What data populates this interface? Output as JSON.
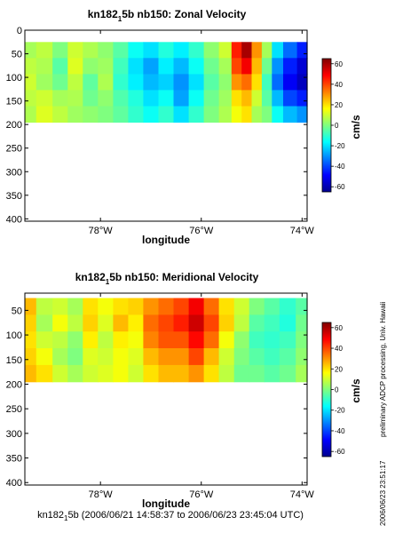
{
  "chart_data": [
    {
      "type": "heatmap",
      "title_main": "kn182",
      "title_sub": "1",
      "title_rest": "5b nb150: Zonal Velocity",
      "xlabel": "longitude",
      "ylabel": "",
      "x_ticks": [
        {
          "v": -78,
          "label": "78°W"
        },
        {
          "v": -76,
          "label": "76°W"
        },
        {
          "v": -74,
          "label": "74°W"
        }
      ],
      "y_ticks": [
        {
          "v": 0,
          "label": "0"
        },
        {
          "v": 50,
          "label": "50"
        },
        {
          "v": 100,
          "label": "100"
        },
        {
          "v": 150,
          "label": "150"
        },
        {
          "v": 200,
          "label": "200"
        },
        {
          "v": 250,
          "label": "250"
        },
        {
          "v": 300,
          "label": "300"
        },
        {
          "v": 350,
          "label": "350"
        },
        {
          "v": 400,
          "label": "400"
        }
      ],
      "xlim": [
        -79.5,
        -73.9
      ],
      "ylim": [
        405,
        0
      ],
      "colorbar": {
        "label": "cm/s",
        "min": -65,
        "max": 65,
        "ticks": [
          60,
          40,
          20,
          0,
          -20,
          -40,
          -60
        ]
      },
      "data_depth_range": [
        25,
        195
      ],
      "profiles": [
        {
          "lon": -79.45,
          "values": [
            5,
            8,
            10,
            8,
            6
          ]
        },
        {
          "lon": -79.1,
          "values": [
            8,
            6,
            4,
            10,
            12
          ]
        },
        {
          "lon": -78.8,
          "values": [
            0,
            -5,
            -2,
            5,
            8
          ]
        },
        {
          "lon": -78.5,
          "values": [
            10,
            12,
            8,
            6,
            4
          ]
        },
        {
          "lon": -78.2,
          "values": [
            6,
            2,
            -4,
            -2,
            2
          ]
        },
        {
          "lon": -77.9,
          "values": [
            2,
            4,
            6,
            2,
            0
          ]
        },
        {
          "lon": -77.6,
          "values": [
            -5,
            -8,
            -10,
            -6,
            -4
          ]
        },
        {
          "lon": -77.3,
          "values": [
            -15,
            -20,
            -18,
            -12,
            -10
          ]
        },
        {
          "lon": -77.0,
          "values": [
            -20,
            -28,
            -25,
            -20,
            -15
          ]
        },
        {
          "lon": -76.7,
          "values": [
            -12,
            -18,
            -22,
            -15,
            -10
          ]
        },
        {
          "lon": -76.4,
          "values": [
            -18,
            -25,
            -30,
            -28,
            -20
          ]
        },
        {
          "lon": -76.1,
          "values": [
            -10,
            -15,
            -20,
            -15,
            -10
          ]
        },
        {
          "lon": -75.8,
          "values": [
            2,
            -2,
            -5,
            -2,
            0
          ]
        },
        {
          "lon": -75.5,
          "values": [
            10,
            5,
            2,
            4,
            6
          ]
        },
        {
          "lon": -75.3,
          "values": [
            45,
            40,
            30,
            20,
            15
          ]
        },
        {
          "lon": -75.1,
          "values": [
            60,
            50,
            35,
            25,
            20
          ]
        },
        {
          "lon": -74.9,
          "values": [
            30,
            25,
            20,
            10,
            5
          ]
        },
        {
          "lon": -74.7,
          "values": [
            5,
            -2,
            -8,
            -5,
            0
          ]
        },
        {
          "lon": -74.5,
          "values": [
            -20,
            -30,
            -35,
            -25,
            -15
          ]
        },
        {
          "lon": -74.25,
          "values": [
            -35,
            -45,
            -50,
            -40,
            -25
          ]
        },
        {
          "lon": -73.95,
          "values": [
            -45,
            -55,
            -58,
            -45,
            -30
          ]
        }
      ]
    },
    {
      "type": "heatmap",
      "title_main": "kn182",
      "title_sub": "1",
      "title_rest": "5b nb150: Meridional Velocity",
      "xlabel": "longitude",
      "ylabel": "",
      "x_ticks": [
        {
          "v": -78,
          "label": "78°W"
        },
        {
          "v": -76,
          "label": "76°W"
        },
        {
          "v": -74,
          "label": "74°W"
        }
      ],
      "y_ticks": [
        {
          "v": 50,
          "label": "50"
        },
        {
          "v": 100,
          "label": "100"
        },
        {
          "v": 150,
          "label": "150"
        },
        {
          "v": 200,
          "label": "200"
        },
        {
          "v": 250,
          "label": "250"
        },
        {
          "v": 300,
          "label": "300"
        },
        {
          "v": 350,
          "label": "350"
        },
        {
          "v": 400,
          "label": "400"
        }
      ],
      "xlim": [
        -79.5,
        -73.9
      ],
      "ylim": [
        405,
        15
      ],
      "colorbar": {
        "label": "cm/s",
        "min": -65,
        "max": 65,
        "ticks": [
          60,
          40,
          20,
          0,
          -20,
          -40,
          -60
        ]
      },
      "data_depth_range": [
        25,
        195
      ],
      "profiles": [
        {
          "lon": -79.45,
          "values": [
            25,
            22,
            20,
            22,
            25
          ]
        },
        {
          "lon": -79.1,
          "values": [
            8,
            5,
            10,
            15,
            20
          ]
        },
        {
          "lon": -78.8,
          "values": [
            10,
            15,
            8,
            5,
            10
          ]
        },
        {
          "lon": -78.5,
          "values": [
            5,
            8,
            2,
            0,
            5
          ]
        },
        {
          "lon": -78.2,
          "values": [
            20,
            22,
            18,
            12,
            10
          ]
        },
        {
          "lon": -77.9,
          "values": [
            15,
            12,
            8,
            10,
            12
          ]
        },
        {
          "lon": -77.6,
          "values": [
            20,
            25,
            18,
            15,
            15
          ]
        },
        {
          "lon": -77.3,
          "values": [
            22,
            18,
            15,
            12,
            10
          ]
        },
        {
          "lon": -77.0,
          "values": [
            30,
            35,
            32,
            25,
            20
          ]
        },
        {
          "lon": -76.7,
          "values": [
            35,
            40,
            38,
            30,
            25
          ]
        },
        {
          "lon": -76.4,
          "values": [
            40,
            45,
            38,
            30,
            25
          ]
        },
        {
          "lon": -76.1,
          "values": [
            50,
            55,
            48,
            40,
            30
          ]
        },
        {
          "lon": -75.8,
          "values": [
            35,
            40,
            35,
            25,
            20
          ]
        },
        {
          "lon": -75.5,
          "values": [
            20,
            22,
            15,
            10,
            8
          ]
        },
        {
          "lon": -75.2,
          "values": [
            10,
            8,
            2,
            0,
            -2
          ]
        },
        {
          "lon": -74.9,
          "values": [
            0,
            -5,
            -8,
            -5,
            -2
          ]
        },
        {
          "lon": -74.6,
          "values": [
            -5,
            -8,
            -10,
            -8,
            -5
          ]
        },
        {
          "lon": -74.3,
          "values": [
            -10,
            -12,
            -8,
            -5,
            -2
          ]
        },
        {
          "lon": -73.95,
          "values": [
            -5,
            -2,
            0,
            2,
            5
          ]
        }
      ]
    }
  ],
  "footer": {
    "cruise_main": "kn182",
    "cruise_sub": "1",
    "cruise_rest": "5b (2006/06/21 14:58:37 to 2006/06/23 23:45:04 UTC)",
    "side_credit": "preliminary ADCP processing,  Univ. Hawaii",
    "side_timestamp": "2006/06/23 23:51:17"
  }
}
